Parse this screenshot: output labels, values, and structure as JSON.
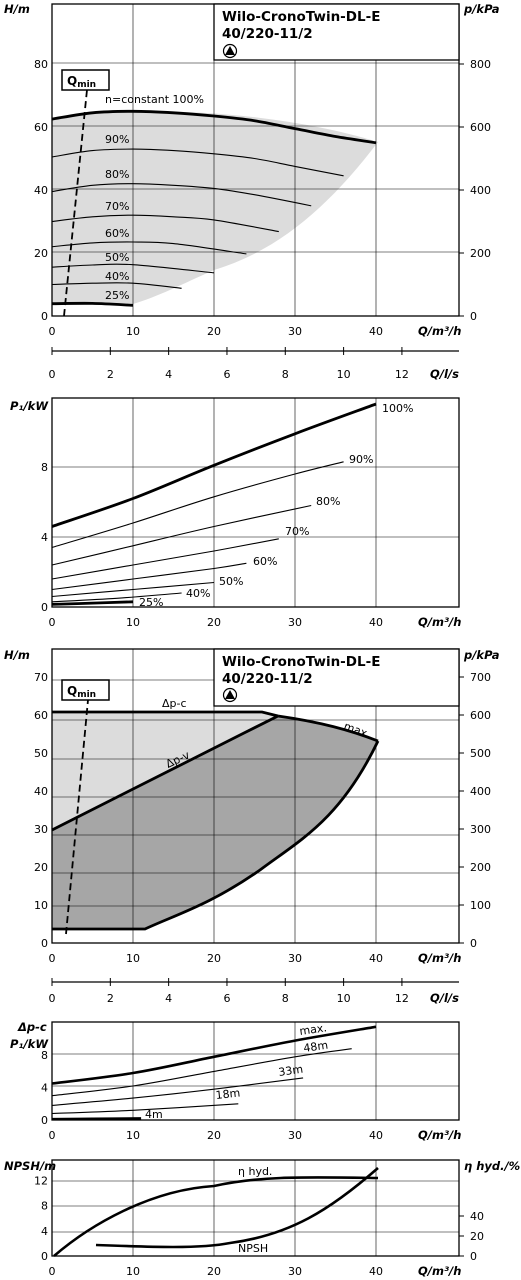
{
  "title": {
    "line1": "Wilo-CronoTwin-DL-E",
    "line2": "40/220-11/2"
  },
  "units": {
    "H": "H/m",
    "p": "p/kPa",
    "Q": "Q/m³/h",
    "Qls": "Q/l/s",
    "P1": "P₁/kW",
    "dpc_p1": "Δp-c",
    "NPSH": "NPSH/m",
    "eta": "η hyd./%",
    "qmin_q": "Q",
    "qmin_sub": "min"
  },
  "axes": {
    "q_ticks": [
      0,
      10,
      20,
      30,
      40
    ],
    "qls_ticks": [
      0,
      2,
      4,
      6,
      8,
      10,
      12
    ],
    "h1_ticks": [
      0,
      20,
      40,
      60,
      80
    ],
    "p1_ticks": [
      0,
      200,
      400,
      600,
      800
    ],
    "pw_ticks": [
      0,
      4,
      8
    ],
    "h2_ticks": [
      0,
      10,
      20,
      30,
      40,
      50,
      60,
      70
    ],
    "p2_ticks": [
      0,
      100,
      200,
      300,
      400,
      500,
      600,
      700
    ],
    "pw2_ticks": [
      0,
      4,
      8
    ],
    "npsh_ticks": [
      0,
      4,
      8,
      12
    ],
    "eta_ticks": [
      0,
      20,
      40
    ]
  },
  "chart_data": [
    {
      "type": "line",
      "xlabel": "Q/m³/h",
      "ylabel": "H/m",
      "y2label": "p/kPa",
      "xlim": [
        0,
        50
      ],
      "ylim": [
        0,
        80
      ],
      "series": [
        {
          "name": "n=constant 100%",
          "x": [
            0,
            5,
            10,
            15,
            20,
            25,
            30,
            35,
            40
          ],
          "y": [
            62.5,
            64.5,
            65,
            64.5,
            63.5,
            62,
            59.5,
            57,
            55
          ]
        },
        {
          "name": "90%",
          "x": [
            0,
            5,
            10,
            15,
            20,
            25,
            30,
            36
          ],
          "y": [
            50.5,
            52.5,
            53,
            52.5,
            51.5,
            50,
            47.5,
            44.5
          ]
        },
        {
          "name": "80%",
          "x": [
            0,
            5,
            10,
            15,
            20,
            25,
            32
          ],
          "y": [
            39.5,
            41.5,
            42,
            41.5,
            40.5,
            38.5,
            35
          ]
        },
        {
          "name": "70%",
          "x": [
            0,
            5,
            10,
            15,
            20,
            28
          ],
          "y": [
            30,
            31.5,
            32,
            31.5,
            30.5,
            26.8
          ]
        },
        {
          "name": "60%",
          "x": [
            0,
            5,
            10,
            15,
            24
          ],
          "y": [
            22,
            23.2,
            23.5,
            23,
            19.7
          ]
        },
        {
          "name": "50%",
          "x": [
            0,
            5,
            10,
            20
          ],
          "y": [
            15.5,
            16.2,
            16.3,
            13.7
          ]
        },
        {
          "name": "40%",
          "x": [
            0,
            5,
            10,
            16
          ],
          "y": [
            10,
            10.4,
            10.4,
            8.8
          ]
        },
        {
          "name": "25%",
          "x": [
            0,
            5,
            10
          ],
          "y": [
            3.9,
            4.0,
            3.4
          ]
        },
        {
          "name": "Qmin",
          "x": [
            1.5,
            4.5
          ],
          "y": [
            0,
            75
          ]
        }
      ]
    },
    {
      "type": "line",
      "xlabel": "Q/m³/h",
      "ylabel": "P₁/kW",
      "xlim": [
        0,
        50
      ],
      "ylim": [
        0,
        12
      ],
      "series": [
        {
          "name": "100%",
          "x": [
            0,
            10,
            20,
            30,
            40
          ],
          "y": [
            4.6,
            6.2,
            8.1,
            9.9,
            11.6
          ]
        },
        {
          "name": "90%",
          "x": [
            0,
            10,
            20,
            30,
            36
          ],
          "y": [
            3.4,
            4.8,
            6.3,
            7.6,
            8.3
          ]
        },
        {
          "name": "80%",
          "x": [
            0,
            10,
            20,
            32
          ],
          "y": [
            2.4,
            3.5,
            4.6,
            5.8
          ]
        },
        {
          "name": "70%",
          "x": [
            0,
            10,
            20,
            28
          ],
          "y": [
            1.6,
            2.4,
            3.2,
            3.9
          ]
        },
        {
          "name": "60%",
          "x": [
            0,
            10,
            20,
            24
          ],
          "y": [
            1.0,
            1.6,
            2.2,
            2.5
          ]
        },
        {
          "name": "50%",
          "x": [
            0,
            10,
            20
          ],
          "y": [
            0.6,
            1.0,
            1.4
          ]
        },
        {
          "name": "40%",
          "x": [
            0,
            8,
            16
          ],
          "y": [
            0.3,
            0.5,
            0.8
          ]
        },
        {
          "name": "25%",
          "x": [
            0,
            5,
            10
          ],
          "y": [
            0.15,
            0.22,
            0.3
          ]
        }
      ]
    },
    {
      "type": "area",
      "xlabel": "Q/m³/h",
      "ylabel": "H/m",
      "y2label": "p/kPa",
      "xlim": [
        0,
        50
      ],
      "ylim": [
        0,
        75
      ],
      "series": [
        {
          "name": "Δp-c",
          "x": [
            0,
            25,
            28
          ],
          "y": [
            62.5,
            62.5,
            61.5
          ]
        },
        {
          "name": "Δp-v",
          "x": [
            0,
            10,
            20,
            28,
            40
          ],
          "y": [
            30.5,
            39.5,
            50,
            61.5,
            54
          ]
        },
        {
          "name": "max.",
          "x": [
            28,
            33,
            40
          ],
          "y": [
            61.5,
            59.5,
            54
          ]
        },
        {
          "name": "min",
          "x": [
            0,
            11,
            16,
            22,
            30,
            40
          ],
          "y": [
            3.8,
            4,
            8,
            15,
            28,
            54
          ]
        },
        {
          "name": "Qmin",
          "x": [
            1.5,
            4.5
          ],
          "y": [
            2.3,
            69
          ]
        }
      ]
    },
    {
      "type": "line",
      "xlabel": "Q/m³/h",
      "ylabel": "P₁/kW",
      "xlim": [
        0,
        50
      ],
      "ylim": [
        0,
        12
      ],
      "series": [
        {
          "name": "max.",
          "x": [
            0,
            10,
            20,
            30,
            40
          ],
          "y": [
            4.5,
            5.8,
            7.8,
            9.8,
            11.5
          ]
        },
        {
          "name": "48m",
          "x": [
            0,
            10,
            20,
            30,
            37
          ],
          "y": [
            3,
            4.2,
            6,
            7.8,
            8.8
          ]
        },
        {
          "name": "33m",
          "x": [
            0,
            10,
            20,
            31
          ],
          "y": [
            1.8,
            2.7,
            3.8,
            5.2
          ]
        },
        {
          "name": "18m",
          "x": [
            0,
            10,
            23
          ],
          "y": [
            0.8,
            1.2,
            2.0
          ]
        },
        {
          "name": "4m",
          "x": [
            0,
            5,
            11
          ],
          "y": [
            0.1,
            0.15,
            0.2
          ]
        }
      ]
    },
    {
      "type": "line",
      "xlabel": "Q/m³/h",
      "ylabel": "NPSH/m",
      "y2label": "η hyd./%",
      "xlim": [
        0,
        50
      ],
      "ylim": [
        0,
        14
      ],
      "series": [
        {
          "name": "η hyd.",
          "x": [
            0,
            5,
            10,
            15,
            20,
            25,
            30,
            35,
            40
          ],
          "y": [
            0,
            4.5,
            7.3,
            9.3,
            10.8,
            11.8,
            12.3,
            12.4,
            12.2
          ]
        },
        {
          "name": "NPSH",
          "x": [
            5,
            10,
            15,
            20,
            25,
            30,
            35,
            40
          ],
          "y": [
            1.8,
            1.7,
            1.6,
            1.8,
            3.2,
            5.7,
            9.2,
            13.8
          ]
        }
      ]
    }
  ]
}
